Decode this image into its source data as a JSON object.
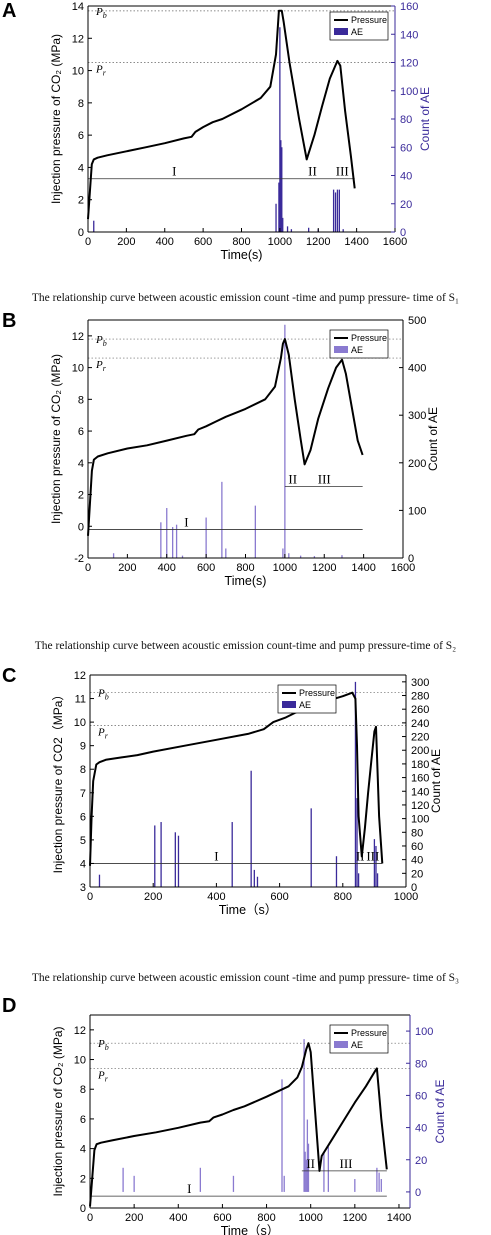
{
  "panels": [
    {
      "letter": "A",
      "caption": "The relationship curve between acoustic emission count -time and pump pressure- time of S₁"
    },
    {
      "letter": "B",
      "caption": "The relationship curve between acoustic emission count-time and pump pressure-time of S₂"
    },
    {
      "letter": "C",
      "caption": "The relationship curve between acoustic emission count -time and pump pressure- time of S₃"
    },
    {
      "letter": "D",
      "caption": ""
    }
  ],
  "chart_data": [
    {
      "type": "line",
      "xlabel": "Time(s)",
      "ylabel": "Injection pressure of CO₂ (MPa)",
      "y2label": "Count of AE",
      "xlim": [
        0,
        1600
      ],
      "xticks": [
        0,
        200,
        400,
        600,
        800,
        1000,
        1200,
        1400,
        1600
      ],
      "ylim": [
        0,
        14
      ],
      "yticks": [
        0,
        2,
        4,
        6,
        8,
        10,
        12,
        14
      ],
      "y2lim": [
        0,
        160
      ],
      "y2ticks": [
        0,
        20,
        40,
        60,
        80,
        100,
        120,
        140,
        160
      ],
      "legend": [
        "Pressure",
        "AE"
      ],
      "legend_position": "top-right",
      "pressure_color": "#000000",
      "ae_color": "#3a2a9a",
      "right_axis_color": "#3a2a9a",
      "annotations": {
        "pb_label": "P",
        "pb_sub": "b",
        "pr_label": "P",
        "pr_sub": "r",
        "stage1": "I",
        "stage2": "II",
        "stage3": "III"
      },
      "pb_value": 13.7,
      "pr_value": 10.5,
      "stage_line": 3.3,
      "stage_positions": [
        {
          "label": "I",
          "x": 450
        },
        {
          "label": "II",
          "x": 1170
        },
        {
          "label": "III",
          "x": 1325
        }
      ],
      "pressure": {
        "x": [
          0,
          10,
          20,
          30,
          50,
          100,
          200,
          300,
          400,
          500,
          540,
          560,
          600,
          650,
          700,
          800,
          900,
          950,
          980,
          995,
          1010,
          1020,
          1050,
          1100,
          1140,
          1180,
          1220,
          1260,
          1300,
          1315,
          1340,
          1370,
          1390
        ],
        "y": [
          0.8,
          2.5,
          4.2,
          4.5,
          4.6,
          4.75,
          5.0,
          5.25,
          5.5,
          5.8,
          5.9,
          6.2,
          6.5,
          6.8,
          7.0,
          7.6,
          8.3,
          9.0,
          11.0,
          13.7,
          13.7,
          13.0,
          10.5,
          7.0,
          4.5,
          6.0,
          7.8,
          9.5,
          10.6,
          10.3,
          7.5,
          4.7,
          2.7
        ]
      },
      "ae": {
        "x": [
          30,
          980,
          995,
          1000,
          1005,
          1010,
          1015,
          1040,
          1060,
          1150,
          1200,
          1280,
          1290,
          1300,
          1310,
          1330
        ],
        "y": [
          8,
          20,
          35,
          145,
          65,
          60,
          10,
          4,
          2,
          3,
          2,
          30,
          28,
          30,
          30,
          2
        ]
      }
    },
    {
      "type": "line",
      "xlabel": "Time(s)",
      "ylabel": "Injection pressure of CO₂ (MPa)",
      "y2label": "Count of AE",
      "xlim": [
        0,
        1600
      ],
      "xticks": [
        0,
        200,
        400,
        600,
        800,
        1000,
        1200,
        1400,
        1600
      ],
      "ylim": [
        -2,
        13
      ],
      "yticks": [
        -2,
        0,
        2,
        4,
        6,
        8,
        10,
        12
      ],
      "y2lim": [
        0,
        500
      ],
      "y2ticks": [
        0,
        100,
        200,
        300,
        400,
        500
      ],
      "legend": [
        "Pressure",
        "AE"
      ],
      "legend_position": "top-right",
      "pressure_color": "#000000",
      "ae_color": "#8a7ad0",
      "right_axis_color": "#000000",
      "annotations": {
        "pb_label": "P",
        "pb_sub": "b",
        "pr_label": "P",
        "pr_sub": "r",
        "stage1": "I",
        "stage2": "II",
        "stage3": "III"
      },
      "pb_value": 11.8,
      "pr_value": 10.6,
      "stage_line": -0.2,
      "stage_line2": 2.5,
      "stage_positions": [
        {
          "label": "I",
          "x": 500
        },
        {
          "label": "II",
          "x": 1040
        },
        {
          "label": "III",
          "x": 1200
        }
      ],
      "pressure": {
        "x": [
          0,
          10,
          20,
          30,
          50,
          100,
          200,
          300,
          400,
          500,
          540,
          560,
          600,
          650,
          700,
          800,
          900,
          950,
          980,
          990,
          1000,
          1020,
          1050,
          1080,
          1100,
          1130,
          1170,
          1220,
          1260,
          1290,
          1310,
          1340,
          1370,
          1395
        ],
        "y": [
          -0.6,
          1.5,
          3.5,
          4.2,
          4.4,
          4.6,
          4.9,
          5.1,
          5.4,
          5.7,
          5.8,
          6.1,
          6.3,
          6.6,
          6.9,
          7.4,
          8.0,
          8.8,
          10.6,
          11.5,
          11.8,
          10.8,
          8.0,
          5.5,
          3.9,
          4.8,
          6.8,
          8.7,
          10.0,
          10.5,
          9.6,
          7.5,
          5.4,
          4.5
        ]
      },
      "ae": {
        "x": [
          130,
          370,
          400,
          430,
          450,
          480,
          600,
          680,
          700,
          850,
          990,
          1000,
          1020,
          1080,
          1150,
          1290
        ],
        "y": [
          10,
          75,
          105,
          65,
          70,
          5,
          85,
          160,
          20,
          110,
          20,
          490,
          10,
          5,
          4,
          6
        ]
      }
    },
    {
      "type": "line",
      "xlabel": "Time（s）",
      "ylabel": "Injection pressure of CO2（MPa）",
      "y2label": "Count of AE",
      "xlim": [
        0,
        1000
      ],
      "xticks": [
        0,
        200,
        400,
        600,
        800,
        1000
      ],
      "ylim": [
        3,
        12
      ],
      "yticks": [
        3,
        4,
        5,
        6,
        7,
        8,
        9,
        10,
        11,
        12
      ],
      "y2lim": [
        0,
        310
      ],
      "y2ticks": [
        0,
        20,
        40,
        60,
        80,
        100,
        120,
        140,
        160,
        180,
        200,
        220,
        240,
        260,
        280,
        300
      ],
      "legend": [
        "Pressure",
        "AE"
      ],
      "legend_position": "top-right",
      "pressure_color": "#000000",
      "ae_color": "#3a2a9a",
      "right_axis_color": "#000000",
      "annotations": {
        "pb_label": "P",
        "pb_sub": "b",
        "pr_label": "P",
        "pr_sub": "r",
        "stage1": "I",
        "stage2": "II",
        "stage3": "III"
      },
      "pb_value": 11.25,
      "pr_value": 9.85,
      "stage_line": 4.0,
      "stage_positions": [
        {
          "label": "I",
          "x": 400
        },
        {
          "label": "II",
          "x": 855
        },
        {
          "label": "III",
          "x": 895
        }
      ],
      "pressure": {
        "x": [
          0,
          5,
          10,
          20,
          30,
          50,
          100,
          150,
          200,
          300,
          400,
          500,
          550,
          580,
          620,
          680,
          700,
          750,
          800,
          830,
          840,
          845,
          850,
          860,
          870,
          880,
          890,
          900,
          905,
          915,
          925
        ],
        "y": [
          3.9,
          6.0,
          7.5,
          8.2,
          8.3,
          8.4,
          8.5,
          8.6,
          8.75,
          9.0,
          9.25,
          9.5,
          9.7,
          10.0,
          10.2,
          10.6,
          10.7,
          10.9,
          11.1,
          11.25,
          11.0,
          9.0,
          6.0,
          4.3,
          5.5,
          7.0,
          8.3,
          9.6,
          9.8,
          6.0,
          4.0
        ]
      },
      "ae": {
        "x": [
          30,
          205,
          225,
          270,
          280,
          450,
          510,
          520,
          530,
          700,
          780,
          840,
          845,
          850,
          900,
          905,
          910
        ],
        "y": [
          18,
          90,
          95,
          80,
          75,
          95,
          170,
          25,
          15,
          115,
          45,
          300,
          130,
          20,
          70,
          60,
          20
        ]
      }
    },
    {
      "type": "line",
      "xlabel": "Time（s）",
      "ylabel": "Injection pressure of CO₂ (MPa)",
      "y2label": "Count of AE",
      "xlim": [
        0,
        1450
      ],
      "xticks": [
        0,
        200,
        400,
        600,
        800,
        1000,
        1200,
        1400
      ],
      "ylim": [
        0,
        13
      ],
      "yticks": [
        0,
        2,
        4,
        6,
        8,
        10,
        12
      ],
      "y2lim": [
        -10,
        110
      ],
      "y2ticks": [
        0,
        20,
        40,
        60,
        80,
        100
      ],
      "legend": [
        "Pressure",
        "AE"
      ],
      "legend_position": "top-right",
      "pressure_color": "#000000",
      "ae_color": "#8a7ad0",
      "right_axis_color": "#3a2a9a",
      "annotations": {
        "pb_label": "P",
        "pb_sub": "b",
        "pr_label": "P",
        "pr_sub": "r",
        "stage1": "I",
        "stage2": "II",
        "stage3": "III"
      },
      "pb_value": 11.1,
      "pr_value": 9.4,
      "stage_line": 0.8,
      "stage_line2": 2.5,
      "stage_positions": [
        {
          "label": "I",
          "x": 450
        },
        {
          "label": "II",
          "x": 1000
        },
        {
          "label": "III",
          "x": 1160
        }
      ],
      "pressure": {
        "x": [
          0,
          10,
          20,
          30,
          50,
          100,
          200,
          300,
          400,
          500,
          540,
          560,
          600,
          650,
          700,
          800,
          900,
          940,
          960,
          980,
          990,
          1000,
          1020,
          1040,
          1050,
          1100,
          1150,
          1200,
          1250,
          1295,
          1300,
          1320,
          1345
        ],
        "y": [
          0.1,
          2.0,
          3.9,
          4.3,
          4.4,
          4.55,
          4.85,
          5.1,
          5.4,
          5.75,
          5.85,
          6.1,
          6.3,
          6.6,
          6.85,
          7.5,
          8.2,
          8.8,
          9.5,
          10.7,
          11.1,
          10.5,
          6.5,
          2.5,
          3.5,
          4.7,
          5.9,
          7.1,
          8.2,
          9.3,
          9.4,
          6.0,
          2.6
        ]
      },
      "ae": {
        "x": [
          150,
          200,
          500,
          650,
          870,
          880,
          970,
          975,
          980,
          985,
          990,
          1060,
          1080,
          1200,
          1300,
          1310,
          1320
        ],
        "y": [
          15,
          10,
          15,
          10,
          70,
          10,
          95,
          25,
          20,
          45,
          30,
          25,
          28,
          8,
          15,
          12,
          8
        ]
      }
    }
  ]
}
